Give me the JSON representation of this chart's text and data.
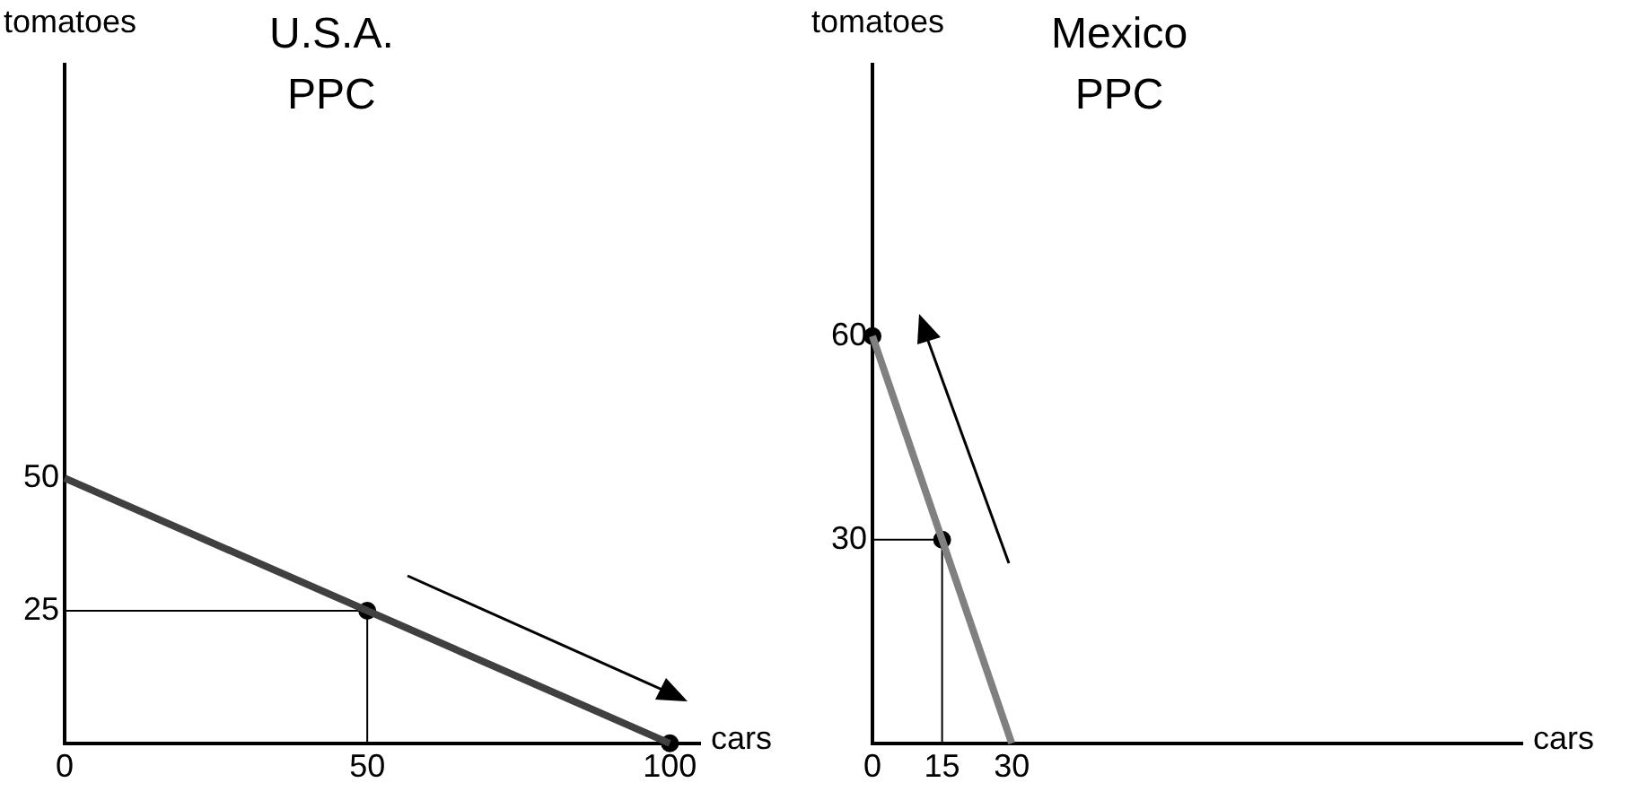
{
  "chart_data": [
    {
      "type": "line",
      "title": "U.S.A.",
      "subtitle": "PPC",
      "xlabel": "cars",
      "ylabel": "tomatoes",
      "xlim": [
        0,
        105
      ],
      "xticks": [
        0,
        50,
        100
      ],
      "ylim": [
        0,
        128
      ],
      "yticks": [
        25,
        50
      ],
      "grid": false,
      "legend": false,
      "series": [
        {
          "type": "line",
          "x": [
            0,
            100
          ],
          "values": [
            50,
            0
          ],
          "color": "#404040",
          "marker": "none"
        },
        {
          "type": "line",
          "x": [
            0,
            50,
            50
          ],
          "values": [
            25,
            25,
            0
          ],
          "color": "#000000",
          "marker": "none"
        },
        {
          "type": "scatter",
          "x": [
            50,
            100
          ],
          "values": [
            25,
            0
          ],
          "color": "#000000",
          "marker": "circle"
        }
      ]
    },
    {
      "type": "line",
      "title": "Mexico",
      "subtitle": "PPC",
      "xlabel": "cars",
      "ylabel": "tomatoes",
      "xlim": [
        0,
        140
      ],
      "xticks": [
        0,
        15,
        30
      ],
      "ylim": [
        0,
        100
      ],
      "yticks": [
        30,
        60
      ],
      "grid": false,
      "legend": false,
      "series": [
        {
          "type": "line",
          "x": [
            0,
            30
          ],
          "values": [
            60,
            0
          ],
          "color": "#808080",
          "marker": "none"
        },
        {
          "type": "line",
          "x": [
            0,
            15,
            15
          ],
          "values": [
            30,
            30,
            0
          ],
          "color": "#000000",
          "marker": "none"
        },
        {
          "type": "scatter",
          "x": [
            0,
            15
          ],
          "values": [
            60,
            30
          ],
          "color": "#000000",
          "marker": "circle"
        }
      ]
    }
  ]
}
